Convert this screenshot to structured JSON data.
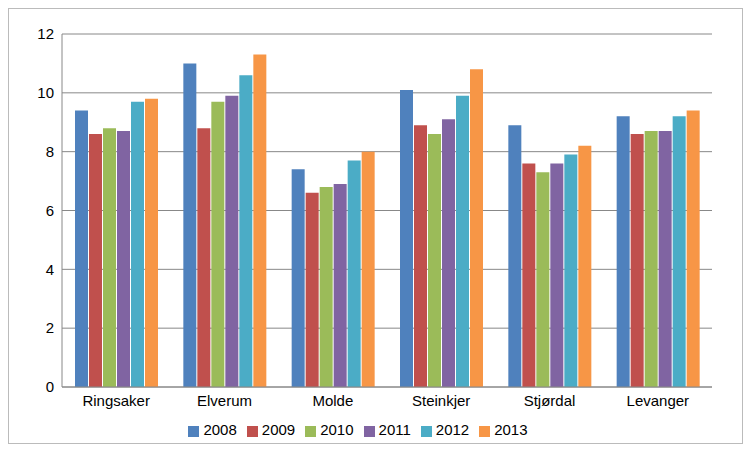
{
  "chart_data": {
    "type": "bar",
    "categories": [
      "Ringsaker",
      "Elverum",
      "Molde",
      "Steinkjer",
      "Stjørdal",
      "Levanger"
    ],
    "series": [
      {
        "name": "2008",
        "color": "#4f81bd",
        "values": [
          9.4,
          11.0,
          7.4,
          10.1,
          8.9,
          9.2
        ]
      },
      {
        "name": "2009",
        "color": "#c0504d",
        "values": [
          8.6,
          8.8,
          6.6,
          8.9,
          7.6,
          8.6
        ]
      },
      {
        "name": "2010",
        "color": "#9bbb59",
        "values": [
          8.8,
          9.7,
          6.8,
          8.6,
          7.3,
          8.7
        ]
      },
      {
        "name": "2011",
        "color": "#8064a2",
        "values": [
          8.7,
          9.9,
          6.9,
          9.1,
          7.6,
          8.7
        ]
      },
      {
        "name": "2012",
        "color": "#4bacc6",
        "values": [
          9.7,
          10.6,
          7.7,
          9.9,
          7.9,
          9.2
        ]
      },
      {
        "name": "2013",
        "color": "#f79646",
        "values": [
          9.8,
          11.3,
          8.0,
          10.8,
          8.2,
          9.4
        ]
      }
    ],
    "ylim": [
      0,
      12
    ],
    "yticks": [
      0,
      2,
      4,
      6,
      8,
      10,
      12
    ],
    "grid": true,
    "legend": "bottom"
  }
}
